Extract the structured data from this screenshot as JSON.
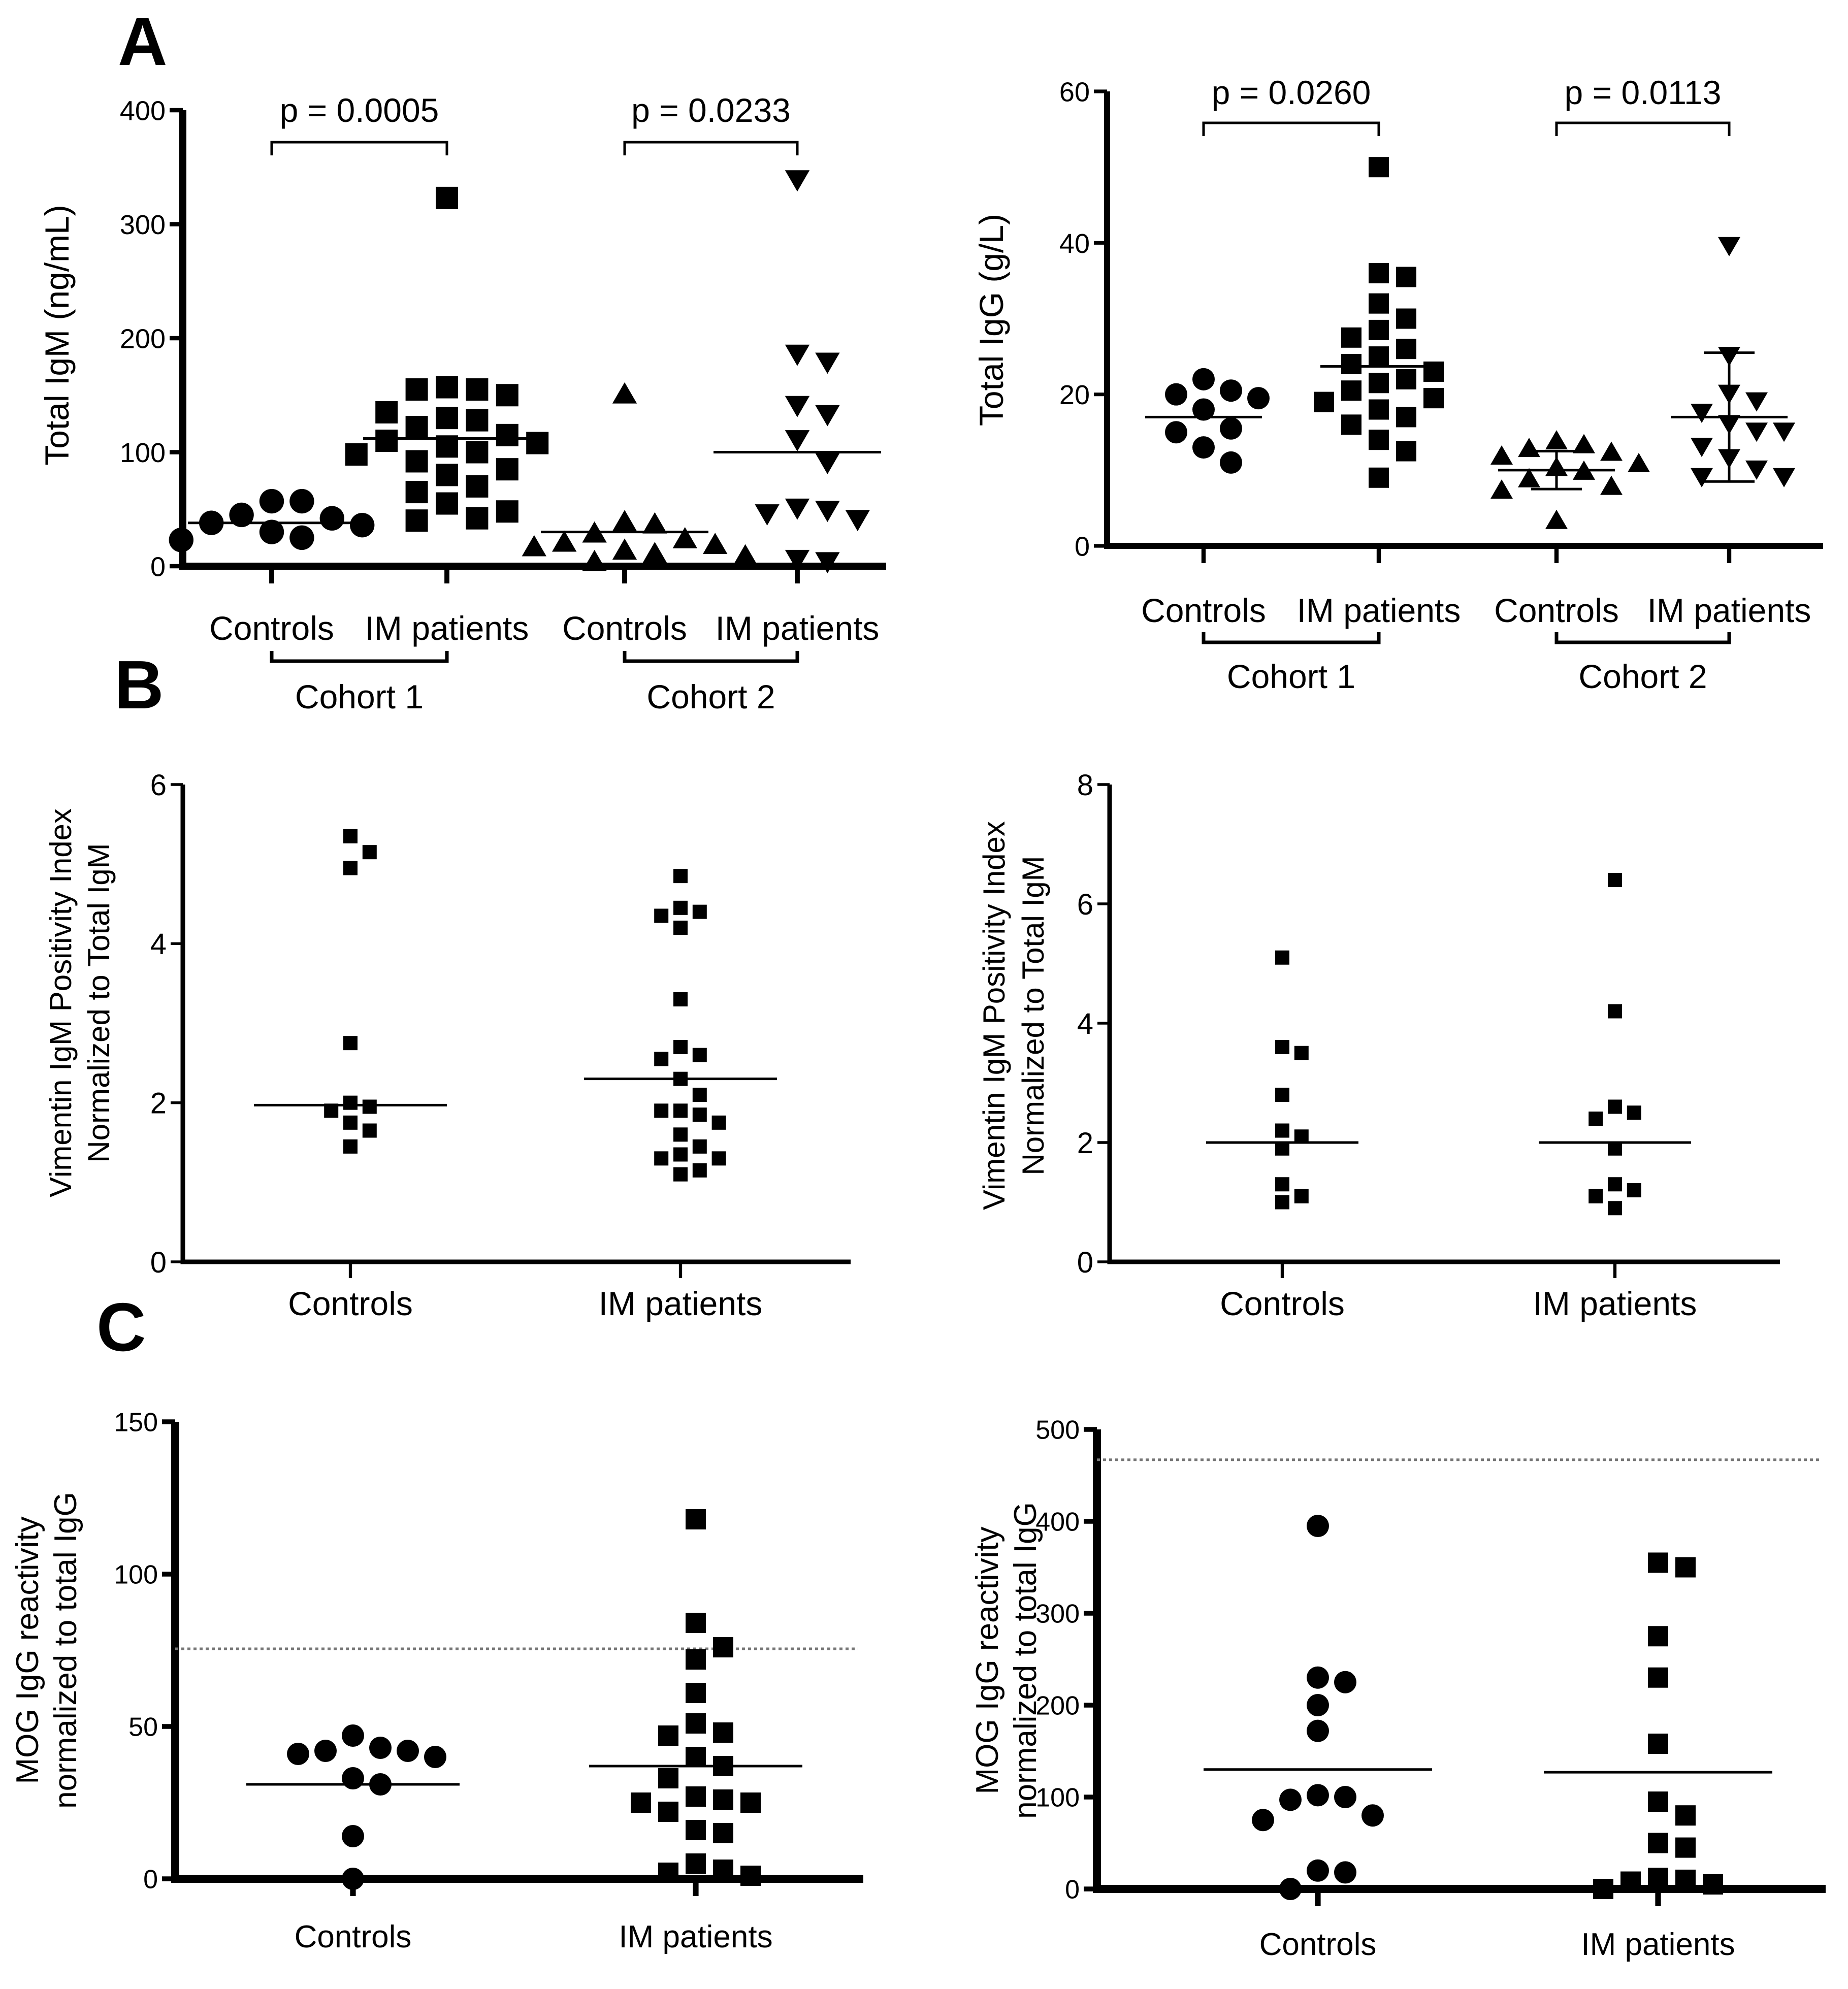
{
  "panel_letters": [
    "A",
    "B",
    "C"
  ],
  "chart_data": [
    {
      "type": "scatter",
      "title": "",
      "ylabel": "Total IgM (ng/mL)",
      "ylim": [
        0,
        400
      ],
      "yticks": [
        0,
        100,
        200,
        300,
        400
      ],
      "group_labels": [
        "Cohort 1",
        "Cohort 2"
      ],
      "p_values": [
        "p = 0.0005",
        "p = 0.0233"
      ],
      "series": [
        {
          "name": "Controls",
          "group": "Cohort 1",
          "marker": "circle",
          "mean": 38,
          "values": [
            57,
            57,
            45,
            42,
            38,
            36,
            30,
            25,
            23
          ]
        },
        {
          "name": "IM patients",
          "group": "Cohort 1",
          "marker": "square",
          "mean": 112,
          "values": [
            323,
            157,
            155,
            155,
            150,
            135,
            130,
            128,
            122,
            115,
            110,
            108,
            105,
            100,
            98,
            92,
            85,
            80,
            70,
            65,
            55,
            48,
            42,
            40
          ]
        },
        {
          "name": "Controls",
          "group": "Cohort 2",
          "marker": "triangle-up",
          "mean": 30,
          "values": [
            152,
            40,
            38,
            30,
            25,
            22,
            20,
            18,
            15,
            12,
            10,
            5
          ]
        },
        {
          "name": "IM patients",
          "group": "Cohort 2",
          "marker": "triangle-down",
          "mean": 100,
          "values": [
            338,
            185,
            178,
            140,
            132,
            110,
            90,
            50,
            48,
            45,
            40,
            5,
            3
          ]
        }
      ]
    },
    {
      "type": "scatter",
      "title": "",
      "ylabel": "Total IgG (g/L)",
      "ylim": [
        0,
        60
      ],
      "yticks": [
        0,
        20,
        40,
        60
      ],
      "group_labels": [
        "Cohort 1",
        "Cohort 2"
      ],
      "p_values": [
        "p = 0.0260",
        "p = 0.0113"
      ],
      "series": [
        {
          "name": "Controls",
          "group": "Cohort 1",
          "marker": "circle",
          "mean": 17,
          "values": [
            22,
            20.5,
            20,
            19.5,
            18,
            15.5,
            15,
            13,
            11
          ]
        },
        {
          "name": "IM patients",
          "group": "Cohort 1",
          "marker": "square",
          "mean": 23.7,
          "values": [
            50,
            36,
            35.5,
            32,
            30,
            28.5,
            27.5,
            26,
            25,
            24,
            23,
            22,
            21.5,
            20.5,
            19.5,
            19,
            18,
            17,
            16,
            14,
            12.5,
            9
          ]
        },
        {
          "name": "Controls",
          "group": "Cohort 2",
          "marker": "triangle-up",
          "mean": 10,
          "sd": 2.5,
          "values": [
            14,
            13.5,
            13,
            12.5,
            12,
            11,
            10.5,
            10,
            9,
            8,
            7.5,
            3.5
          ]
        },
        {
          "name": "IM patients",
          "group": "Cohort 2",
          "marker": "triangle-down",
          "mean": 17,
          "sd": 8.5,
          "values": [
            39.5,
            25,
            20,
            19,
            17.5,
            16,
            15,
            15,
            13,
            11.5,
            10,
            9,
            9
          ]
        }
      ]
    },
    {
      "type": "scatter",
      "title": "",
      "ylabel": [
        "Vimentin IgM Positivity Index",
        "Normalized to Total IgM"
      ],
      "ylim": [
        0,
        6
      ],
      "yticks": [
        0,
        2,
        4,
        6
      ],
      "series": [
        {
          "name": "Controls",
          "marker": "square",
          "mean": 1.97,
          "values": [
            5.35,
            5.15,
            4.95,
            2.75,
            2.0,
            1.95,
            1.9,
            1.75,
            1.65,
            1.45
          ]
        },
        {
          "name": "IM patients",
          "marker": "square",
          "mean": 2.3,
          "values": [
            4.85,
            4.45,
            4.4,
            4.35,
            4.2,
            3.3,
            2.7,
            2.6,
            2.55,
            2.3,
            2.1,
            1.9,
            1.9,
            1.85,
            1.75,
            1.6,
            1.45,
            1.35,
            1.3,
            1.3,
            1.15,
            1.1
          ]
        }
      ]
    },
    {
      "type": "scatter",
      "title": "",
      "ylabel": [
        "Vimentin IgM Positivity Index",
        "Normalized to Total IgM"
      ],
      "ylim": [
        0,
        8
      ],
      "yticks": [
        0,
        2,
        4,
        6,
        8
      ],
      "series": [
        {
          "name": "Controls",
          "marker": "square",
          "mean": 2.0,
          "values": [
            5.1,
            3.6,
            3.5,
            2.8,
            2.2,
            2.1,
            1.9,
            1.3,
            1.1,
            1.0
          ]
        },
        {
          "name": "IM patients",
          "marker": "square",
          "mean": 2.0,
          "values": [
            6.4,
            4.2,
            2.6,
            2.5,
            2.4,
            1.9,
            1.3,
            1.2,
            1.1,
            0.9
          ]
        }
      ]
    },
    {
      "type": "scatter",
      "title": "",
      "ylabel": [
        "MOG IgG reactivity",
        "normalized to total IgG"
      ],
      "ylim": [
        0,
        150
      ],
      "yticks": [
        0,
        50,
        100,
        150
      ],
      "threshold": 75.5,
      "series": [
        {
          "name": "Controls",
          "marker": "circle",
          "mean": 31,
          "values": [
            47,
            43,
            42,
            42,
            41,
            40,
            33,
            31,
            14,
            0
          ]
        },
        {
          "name": "IM patients",
          "marker": "square",
          "mean": 37,
          "values": [
            118,
            84,
            76,
            72,
            61,
            51,
            48,
            47,
            40,
            37,
            33,
            27,
            26,
            25,
            25,
            22,
            16,
            15,
            5,
            3,
            2,
            1
          ]
        }
      ]
    },
    {
      "type": "scatter",
      "title": "",
      "ylabel": [
        "MOG IgG reactivity",
        "normalized to total IgG"
      ],
      "ylim": [
        0,
        500
      ],
      "yticks": [
        0,
        100,
        200,
        300,
        400,
        500
      ],
      "threshold": 467,
      "series": [
        {
          "name": "Controls",
          "marker": "circle",
          "mean": 130,
          "values": [
            395,
            230,
            225,
            200,
            172,
            102,
            100,
            97,
            80,
            75,
            20,
            18,
            0
          ]
        },
        {
          "name": "IM patients",
          "marker": "square",
          "mean": 127,
          "values": [
            355,
            350,
            275,
            230,
            158,
            95,
            80,
            50,
            45,
            12,
            10,
            8,
            5,
            0
          ]
        }
      ]
    }
  ],
  "x_category_labels": [
    "Controls",
    "IM patients"
  ]
}
